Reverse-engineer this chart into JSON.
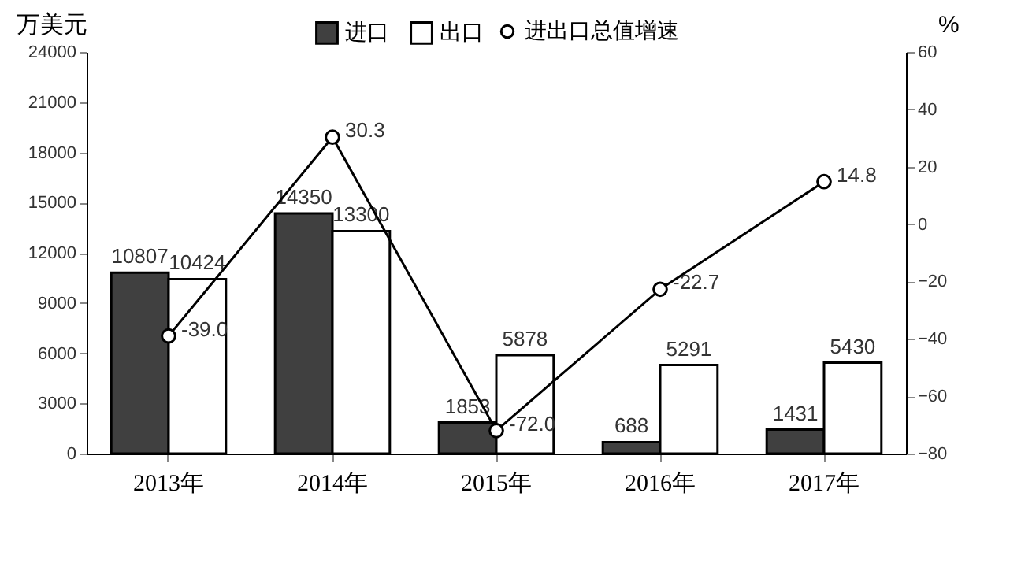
{
  "chart_data": {
    "type": "bar",
    "categories": [
      "2013年",
      "2014年",
      "2015年",
      "2016年",
      "2017年"
    ],
    "ylabel": "万美元",
    "y2label": "%",
    "series": [
      {
        "name": "进口",
        "color": "#404040",
        "values": [
          10807,
          14350,
          1853,
          688,
          1431
        ]
      },
      {
        "name": "出口",
        "color": "#ffffff",
        "values": [
          10424,
          13300,
          5878,
          5291,
          5430
        ]
      },
      {
        "name": "进出口总值增速",
        "type": "line",
        "axis": "y2",
        "color": "#000000",
        "marker": "circle",
        "values": [
          -39.0,
          30.3,
          -72.0,
          -22.7,
          14.8
        ],
        "value_labels": [
          "-39.0",
          "30.3",
          "-72.0",
          "-22.7",
          "14.8"
        ]
      }
    ],
    "ylim": [
      0,
      24000
    ],
    "yticks": [
      0,
      3000,
      6000,
      9000,
      12000,
      15000,
      18000,
      21000,
      24000
    ],
    "y2lim": [
      -80,
      60
    ],
    "y2ticks": [
      -80,
      -60,
      -40,
      -20,
      0,
      20,
      40,
      60
    ],
    "data_labels": true,
    "legend": "top",
    "grid": false
  }
}
